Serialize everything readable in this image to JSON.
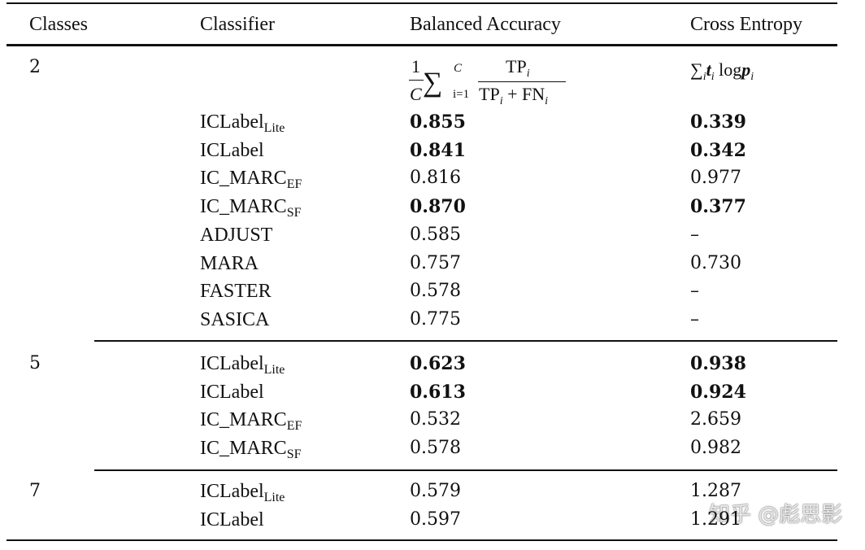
{
  "header": [
    "Classes",
    "Classifier",
    "Balanced Accuracy",
    "Cross Entropy"
  ],
  "formulas": {
    "balanced_accuracy": {
      "one": "1",
      "count": "C",
      "sum": "∑",
      "sum_upper": "C",
      "sum_lower": "i=1",
      "tp": "TP",
      "index": "i",
      "plus_fn": "+ FN"
    },
    "cross_entropy": {
      "sum": "∑",
      "index": "i",
      "t": "t",
      "log": "log",
      "p": "p"
    }
  },
  "groups": [
    {
      "classes": "2",
      "rows": [
        {
          "classifier": "ICLabel",
          "subscript": "Lite",
          "balanced_accuracy": "0.855",
          "cross_entropy": "0.339",
          "bold": true
        },
        {
          "classifier": "ICLabel",
          "balanced_accuracy": "0.841",
          "cross_entropy": "0.342",
          "bold": true
        },
        {
          "classifier": "IC_MARC",
          "subscript": "EF",
          "balanced_accuracy": "0.816",
          "cross_entropy": "0.977",
          "bold": false
        },
        {
          "classifier": "IC_MARC",
          "subscript": "SF",
          "balanced_accuracy": "0.870",
          "cross_entropy": "0.377",
          "bold": true
        },
        {
          "classifier": "ADJUST",
          "balanced_accuracy": "0.585",
          "cross_entropy": "–",
          "bold": false
        },
        {
          "classifier": "MARA",
          "balanced_accuracy": "0.757",
          "cross_entropy": "0.730",
          "bold": false
        },
        {
          "classifier": "FASTER",
          "balanced_accuracy": "0.578",
          "cross_entropy": "–",
          "bold": false
        },
        {
          "classifier": "SASICA",
          "balanced_accuracy": "0.775",
          "cross_entropy": "–",
          "bold": false
        }
      ]
    },
    {
      "classes": "5",
      "rows": [
        {
          "classifier": "ICLabel",
          "subscript": "Lite",
          "balanced_accuracy": "0.623",
          "cross_entropy": "0.938",
          "bold": true
        },
        {
          "classifier": "ICLabel",
          "balanced_accuracy": "0.613",
          "cross_entropy": "0.924",
          "bold": true
        },
        {
          "classifier": "IC_MARC",
          "subscript": "EF",
          "balanced_accuracy": "0.532",
          "cross_entropy": "2.659",
          "bold": false
        },
        {
          "classifier": "IC_MARC",
          "subscript": "SF",
          "balanced_accuracy": "0.578",
          "cross_entropy": "0.982",
          "bold": false
        }
      ]
    },
    {
      "classes": "7",
      "rows": [
        {
          "classifier": "ICLabel",
          "subscript": "Lite",
          "balanced_accuracy": "0.579",
          "cross_entropy": "1.287",
          "bold": false
        },
        {
          "classifier": "ICLabel",
          "balanced_accuracy": "0.597",
          "cross_entropy": "1.291",
          "bold": false
        }
      ]
    }
  ],
  "watermark": "知乎 @彪思影"
}
